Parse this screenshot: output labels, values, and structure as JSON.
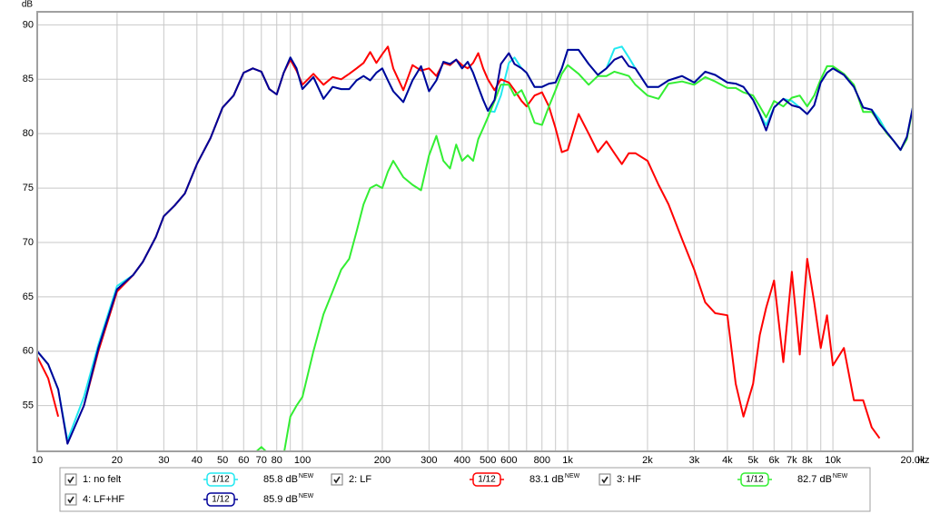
{
  "chart_data": {
    "type": "line",
    "y_unit": "dB",
    "x_unit": "Hz",
    "xscale": "log",
    "grid": true,
    "xlim": [
      10,
      20000
    ],
    "ylim": [
      50.8,
      91.2
    ],
    "yticks": [
      55,
      60,
      65,
      70,
      75,
      80,
      85,
      90
    ],
    "xticks": [
      10,
      20,
      30,
      40,
      50,
      60,
      70,
      80,
      100,
      200,
      300,
      400,
      500,
      600,
      800,
      {
        "value": 1000,
        "label": "1k"
      },
      {
        "value": 2000,
        "label": "2k"
      },
      {
        "value": 3000,
        "label": "3k"
      },
      {
        "value": 4000,
        "label": "4k"
      },
      {
        "value": 5000,
        "label": "5k"
      },
      {
        "value": 6000,
        "label": "6k"
      },
      {
        "value": 7000,
        "label": "7k"
      },
      {
        "value": 8000,
        "label": "8k"
      },
      {
        "value": 10000,
        "label": "10k"
      },
      {
        "value": 20000,
        "label": "20.0k"
      }
    ],
    "xgrid_minor": [
      90,
      700,
      900,
      9000
    ],
    "smoothing": "1/12",
    "level_badge": "NEW",
    "x": [
      10,
      11,
      12,
      13,
      15,
      17,
      20,
      23,
      25,
      28,
      30,
      33,
      36,
      40,
      45,
      50,
      55,
      60,
      65,
      70,
      75,
      80,
      85,
      90,
      95,
      100,
      110,
      120,
      130,
      140,
      150,
      160,
      170,
      180,
      190,
      200,
      210,
      220,
      240,
      260,
      280,
      300,
      320,
      340,
      360,
      380,
      400,
      420,
      440,
      460,
      480,
      500,
      530,
      560,
      600,
      630,
      670,
      700,
      750,
      800,
      850,
      900,
      950,
      1000,
      1100,
      1200,
      1300,
      1400,
      1500,
      1600,
      1700,
      1800,
      2000,
      2200,
      2400,
      2700,
      3000,
      3300,
      3600,
      4000,
      4300,
      4600,
      5000,
      5300,
      5600,
      6000,
      6500,
      7000,
      7500,
      8000,
      8500,
      9000,
      9500,
      10000,
      11000,
      12000,
      13000,
      14000,
      15000,
      16000,
      17000,
      18000,
      19000,
      20000
    ],
    "series": [
      {
        "name": "1: no felt",
        "color": "#22e8f0",
        "level": "85.8 dB",
        "values": [
          60.0,
          58.8,
          56.5,
          51.8,
          55.8,
          60.6,
          66.0,
          67.0,
          68.2,
          70.5,
          72.4,
          73.4,
          74.5,
          77.2,
          79.6,
          82.4,
          83.5,
          85.6,
          86.0,
          85.7,
          84.1,
          83.6,
          85.6,
          87.0,
          86.0,
          84.1,
          85.2,
          83.2,
          84.3,
          84.1,
          84.1,
          84.9,
          85.3,
          84.9,
          85.6,
          86.0,
          84.9,
          83.9,
          82.9,
          84.9,
          86.2,
          83.9,
          84.9,
          86.6,
          86.4,
          86.8,
          86.0,
          86.6,
          85.6,
          84.3,
          83.1,
          82.1,
          82.0,
          83.5,
          86.5,
          87.0,
          86.0,
          85.6,
          84.3,
          84.3,
          84.6,
          84.7,
          86.0,
          87.7,
          87.7,
          86.4,
          85.4,
          86.0,
          87.8,
          88.0,
          87.0,
          86.0,
          84.3,
          84.3,
          84.9,
          85.3,
          84.7,
          85.7,
          85.4,
          84.7,
          84.6,
          84.3,
          83.1,
          81.8,
          80.8,
          82.4,
          83.2,
          83.0,
          82.4,
          81.8,
          82.6,
          84.7,
          85.6,
          86.0,
          85.4,
          84.3,
          82.4,
          82.2,
          81.3,
          80.1,
          79.3,
          78.5,
          79.7,
          82.4
        ]
      },
      {
        "name": "2: LF",
        "color": "#ff0000",
        "level": "83.1 dB",
        "values": [
          59.5,
          57.5,
          54.0,
          null,
          55.0,
          60.0,
          65.5,
          67.0,
          68.2,
          70.5,
          72.4,
          73.4,
          74.5,
          77.2,
          79.6,
          82.4,
          83.5,
          85.6,
          86.0,
          85.7,
          84.1,
          83.6,
          85.6,
          86.8,
          85.8,
          84.5,
          85.5,
          84.5,
          85.2,
          85.0,
          85.5,
          86.0,
          86.5,
          87.5,
          86.5,
          87.3,
          88.0,
          86.0,
          84.0,
          86.3,
          85.8,
          86.0,
          85.3,
          86.5,
          86.3,
          86.8,
          86.3,
          86.0,
          86.5,
          87.4,
          86.0,
          85.0,
          84.0,
          85.0,
          84.7,
          84.0,
          83.0,
          82.5,
          83.5,
          83.8,
          82.5,
          80.5,
          78.3,
          78.5,
          81.8,
          80.0,
          78.3,
          79.3,
          78.2,
          77.2,
          78.2,
          78.2,
          77.5,
          75.3,
          73.5,
          70.3,
          67.5,
          64.5,
          63.5,
          63.3,
          57.0,
          54.0,
          57.0,
          61.5,
          64.0,
          66.5,
          59.0,
          67.3,
          59.7,
          68.5,
          64.5,
          60.3,
          63.3,
          58.7,
          60.3,
          55.5,
          55.5,
          53.0,
          52.0,
          null,
          null,
          null,
          null,
          null
        ]
      },
      {
        "name": "3: HF",
        "color": "#33ee33",
        "level": "82.7 dB",
        "values": [
          null,
          null,
          null,
          null,
          null,
          null,
          null,
          null,
          null,
          null,
          null,
          null,
          null,
          null,
          null,
          null,
          null,
          null,
          50.5,
          51.2,
          50.5,
          null,
          50.5,
          54.0,
          55.0,
          55.8,
          60.0,
          63.4,
          65.5,
          67.5,
          68.5,
          71.0,
          73.5,
          75.0,
          75.3,
          75.0,
          76.5,
          77.5,
          76.0,
          75.3,
          74.8,
          78.0,
          79.8,
          77.5,
          76.8,
          79.0,
          77.5,
          78.0,
          77.5,
          79.5,
          80.5,
          81.5,
          83.0,
          84.5,
          84.5,
          83.5,
          84.0,
          83.0,
          81.0,
          80.8,
          82.5,
          84.0,
          85.5,
          86.3,
          85.5,
          84.5,
          85.3,
          85.3,
          85.7,
          85.5,
          85.3,
          84.5,
          83.5,
          83.2,
          84.6,
          84.8,
          84.5,
          85.2,
          84.8,
          84.2,
          84.2,
          83.8,
          83.5,
          82.5,
          81.5,
          83.0,
          82.5,
          83.3,
          83.5,
          82.5,
          83.5,
          85.0,
          86.2,
          86.2,
          85.5,
          84.5,
          82.0,
          82.0,
          81.0,
          80.0,
          79.3,
          78.5,
          79.5,
          82.3
        ]
      },
      {
        "name": "4: LF+HF",
        "color": "#000099",
        "level": "85.9 dB",
        "values": [
          60.0,
          58.8,
          56.5,
          51.5,
          55.0,
          60.3,
          65.7,
          67.0,
          68.2,
          70.5,
          72.4,
          73.4,
          74.5,
          77.2,
          79.6,
          82.4,
          83.5,
          85.6,
          86.0,
          85.7,
          84.1,
          83.6,
          85.6,
          87.0,
          86.0,
          84.1,
          85.2,
          83.2,
          84.3,
          84.1,
          84.1,
          84.9,
          85.3,
          84.9,
          85.6,
          86.0,
          84.9,
          83.9,
          82.9,
          84.9,
          86.2,
          83.9,
          84.9,
          86.6,
          86.4,
          86.8,
          86.0,
          86.6,
          85.6,
          84.3,
          83.1,
          82.1,
          83.1,
          86.4,
          87.4,
          86.4,
          86.0,
          85.6,
          84.3,
          84.3,
          84.6,
          84.7,
          86.0,
          87.7,
          87.7,
          86.4,
          85.4,
          86.0,
          86.8,
          87.1,
          86.2,
          86.0,
          84.3,
          84.3,
          84.9,
          85.3,
          84.7,
          85.7,
          85.4,
          84.7,
          84.6,
          84.3,
          83.1,
          81.8,
          80.3,
          82.4,
          83.2,
          82.6,
          82.4,
          81.8,
          82.6,
          84.7,
          85.6,
          86.0,
          85.4,
          84.3,
          82.4,
          82.2,
          80.9,
          80.1,
          79.3,
          78.5,
          79.7,
          82.4
        ]
      }
    ]
  }
}
